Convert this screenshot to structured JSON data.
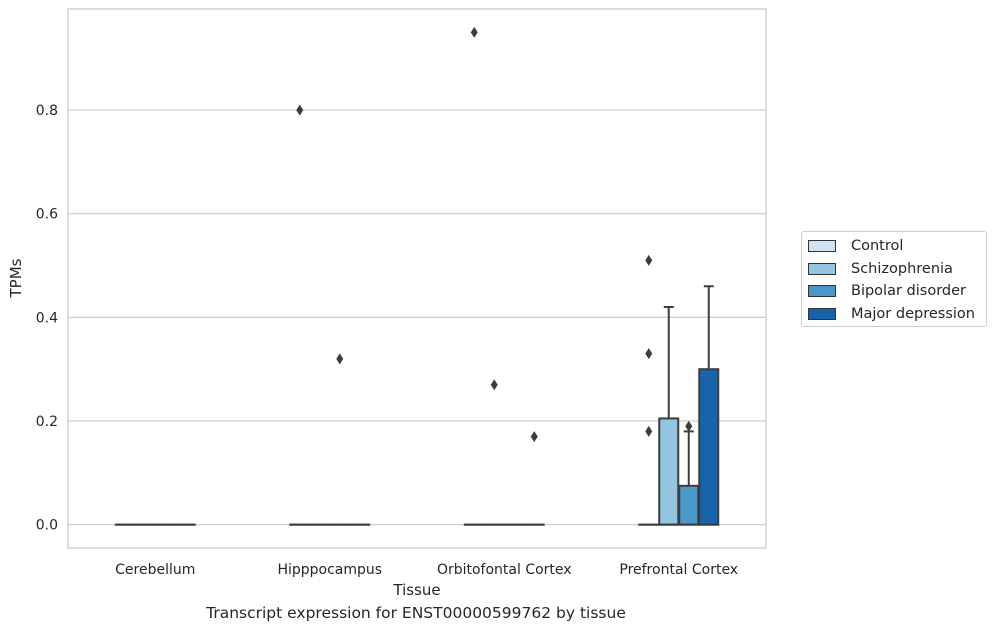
{
  "chart_data": {
    "type": "box",
    "title": "",
    "caption": "Transcript expression for ENST00000599762 by tissue",
    "xlabel": "Tissue",
    "ylabel": "TPMs",
    "ylim": [
      -0.045,
      0.995
    ],
    "yticks": [
      0.0,
      0.2,
      0.4,
      0.6,
      0.8
    ],
    "ytick_labels": [
      "0.0",
      "0.2",
      "0.4",
      "0.6",
      "0.8"
    ],
    "grid": "horizontal",
    "legend_position": "right",
    "categories": [
      "Cerebellum",
      "Hipppocampus",
      "Orbitofontal Cortex",
      "Prefrontal Cortex"
    ],
    "series": [
      {
        "name": "Control",
        "color": "#d0e1f2",
        "boxes": [
          {
            "q1": 0,
            "median": 0,
            "q3": 0,
            "whislo": 0,
            "whishi": 0,
            "fliers": []
          },
          {
            "q1": 0,
            "median": 0,
            "q3": 0,
            "whislo": 0,
            "whishi": 0,
            "fliers": [
              0.8
            ]
          },
          {
            "q1": 0,
            "median": 0,
            "q3": 0,
            "whislo": 0,
            "whishi": 0,
            "fliers": [
              0.95
            ]
          },
          {
            "q1": 0,
            "median": 0,
            "q3": 0,
            "whislo": 0,
            "whishi": 0,
            "fliers": [
              0.18,
              0.33,
              0.51
            ]
          }
        ]
      },
      {
        "name": "Schizophrenia",
        "color": "#94c4df",
        "boxes": [
          {
            "q1": 0,
            "median": 0,
            "q3": 0,
            "whislo": 0,
            "whishi": 0,
            "fliers": []
          },
          {
            "q1": 0,
            "median": 0,
            "q3": 0,
            "whislo": 0,
            "whishi": 0,
            "fliers": []
          },
          {
            "q1": 0,
            "median": 0,
            "q3": 0,
            "whislo": 0,
            "whishi": 0,
            "fliers": [
              0.27
            ]
          },
          {
            "q1": 0,
            "median": 0,
            "q3": 0.205,
            "whislo": 0,
            "whishi": 0.42,
            "fliers": []
          }
        ]
      },
      {
        "name": "Bipolar disorder",
        "color": "#4a98c9",
        "boxes": [
          {
            "q1": 0,
            "median": 0,
            "q3": 0,
            "whislo": 0,
            "whishi": 0,
            "fliers": []
          },
          {
            "q1": 0,
            "median": 0,
            "q3": 0,
            "whislo": 0,
            "whishi": 0,
            "fliers": [
              0.32
            ]
          },
          {
            "q1": 0,
            "median": 0,
            "q3": 0,
            "whislo": 0,
            "whishi": 0,
            "fliers": []
          },
          {
            "q1": 0,
            "median": 0,
            "q3": 0.075,
            "whislo": 0,
            "whishi": 0.18,
            "fliers": [
              0.19
            ]
          }
        ]
      },
      {
        "name": "Major depression",
        "color": "#1764ab",
        "boxes": [
          {
            "q1": 0,
            "median": 0,
            "q3": 0,
            "whislo": 0,
            "whishi": 0,
            "fliers": []
          },
          {
            "q1": 0,
            "median": 0,
            "q3": 0,
            "whislo": 0,
            "whishi": 0,
            "fliers": []
          },
          {
            "q1": 0,
            "median": 0,
            "q3": 0,
            "whislo": 0,
            "whishi": 0,
            "fliers": [
              0.17
            ]
          },
          {
            "q1": 0,
            "median": 0,
            "q3": 0.3,
            "whislo": 0,
            "whishi": 0.46,
            "fliers": []
          }
        ]
      }
    ]
  }
}
